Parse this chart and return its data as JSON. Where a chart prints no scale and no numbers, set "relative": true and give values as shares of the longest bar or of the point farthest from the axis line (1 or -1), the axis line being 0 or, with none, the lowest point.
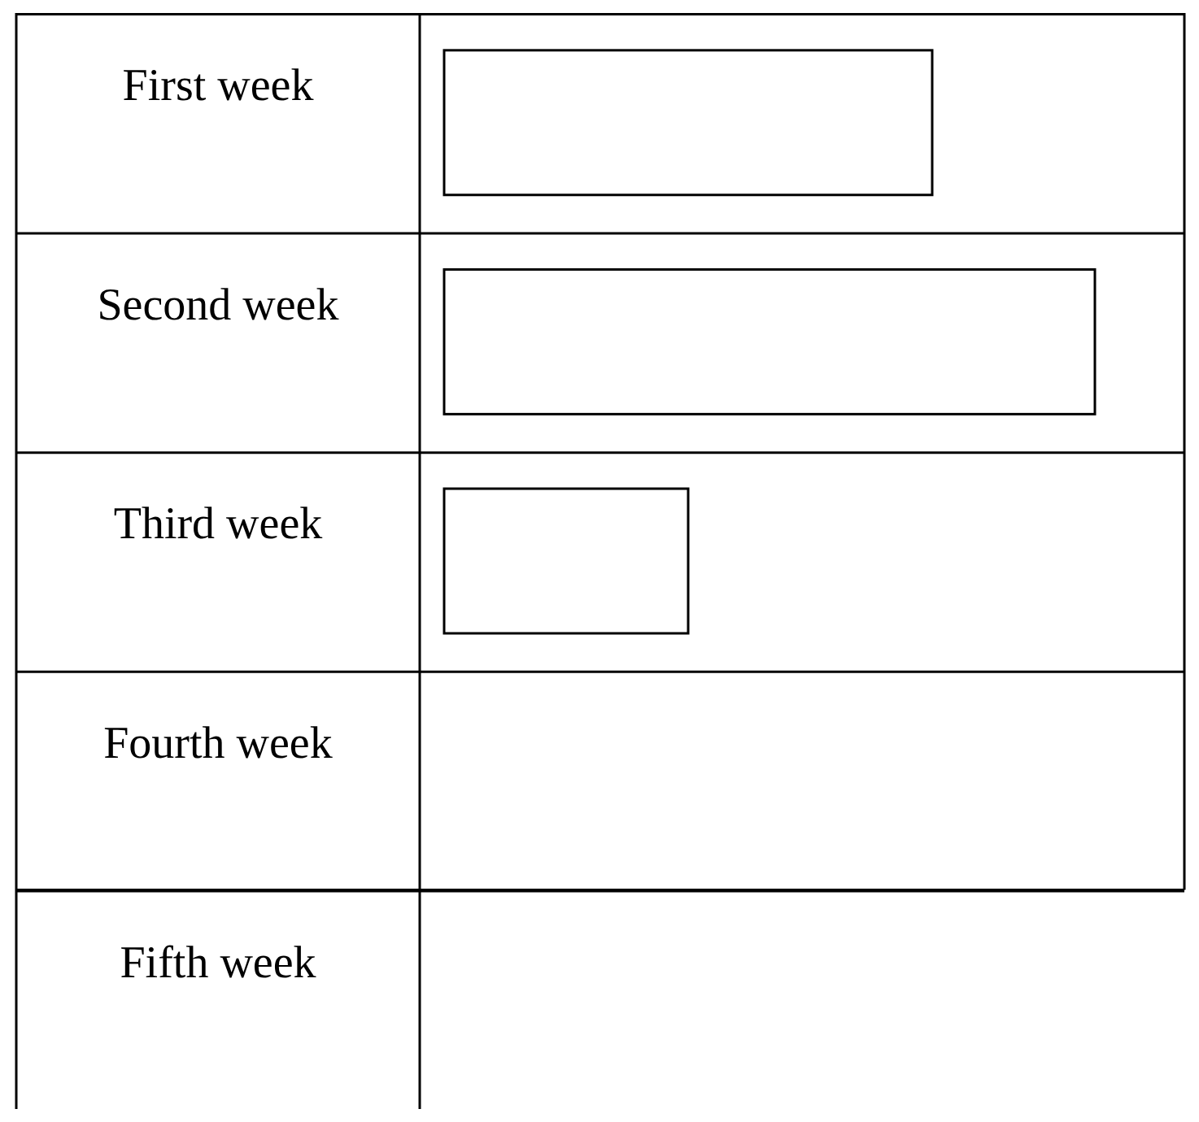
{
  "chart_data": {
    "type": "bar",
    "orientation": "horizontal",
    "relative": true,
    "categories": [
      "First week",
      "Second week",
      "Third week",
      "Fourth week",
      "Fifth week"
    ],
    "values": [
      0.75,
      1,
      0.375,
      null,
      null
    ],
    "color": "#ffffff"
  }
}
